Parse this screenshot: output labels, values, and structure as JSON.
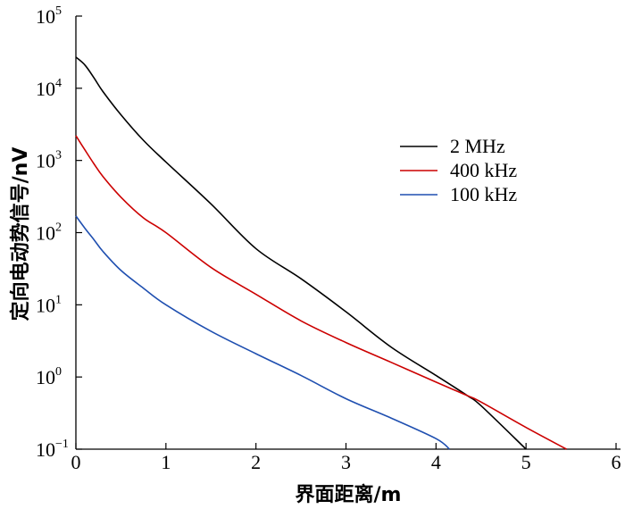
{
  "chart_data": {
    "type": "line",
    "xlabel": "界面距离/m",
    "ylabel": "定向电动势信号/nV",
    "xlim": [
      0,
      6
    ],
    "ylim": [
      0.1,
      100000
    ],
    "yscale": "log",
    "x_ticks": [
      0,
      1,
      2,
      3,
      4,
      5,
      6
    ],
    "y_ticks": [
      {
        "value": 0.1,
        "base": "10",
        "exp": "−1"
      },
      {
        "value": 1,
        "base": "10",
        "exp": "0"
      },
      {
        "value": 10,
        "base": "10",
        "exp": "1"
      },
      {
        "value": 100,
        "base": "10",
        "exp": "2"
      },
      {
        "value": 1000,
        "base": "10",
        "exp": "3"
      },
      {
        "value": 10000,
        "base": "10",
        "exp": "4"
      },
      {
        "value": 100000,
        "base": "10",
        "exp": "5"
      }
    ],
    "grid": false,
    "legend_position": "upper-right",
    "series": [
      {
        "name": "2 MHz",
        "color": "#000000",
        "x": [
          0,
          0.1,
          0.2,
          0.3,
          0.5,
          0.75,
          1.0,
          1.5,
          2.0,
          2.5,
          3.0,
          3.5,
          4.0,
          4.35,
          4.5,
          5.0
        ],
        "y": [
          27000,
          21000,
          14000,
          9000,
          4300,
          1900,
          950,
          250,
          60,
          23,
          8,
          2.6,
          1.05,
          0.55,
          0.4,
          0.1
        ]
      },
      {
        "name": "400 kHz",
        "color": "#cc0000",
        "x": [
          0,
          0.1,
          0.2,
          0.3,
          0.5,
          0.75,
          1.0,
          1.5,
          2.0,
          2.5,
          3.0,
          3.5,
          4.0,
          4.35,
          4.5,
          5.0,
          5.45
        ],
        "y": [
          2200,
          1400,
          900,
          600,
          310,
          160,
          100,
          33,
          14,
          6,
          3,
          1.6,
          0.85,
          0.55,
          0.45,
          0.2,
          0.1
        ]
      },
      {
        "name": "100 kHz",
        "color": "#1f4fb0",
        "x": [
          0,
          0.1,
          0.2,
          0.3,
          0.5,
          0.75,
          1.0,
          1.5,
          2.0,
          2.5,
          3.0,
          3.5,
          4.0,
          4.15
        ],
        "y": [
          170,
          115,
          80,
          55,
          30,
          17,
          10,
          4.3,
          2.1,
          1.05,
          0.5,
          0.27,
          0.14,
          0.1
        ]
      }
    ]
  }
}
